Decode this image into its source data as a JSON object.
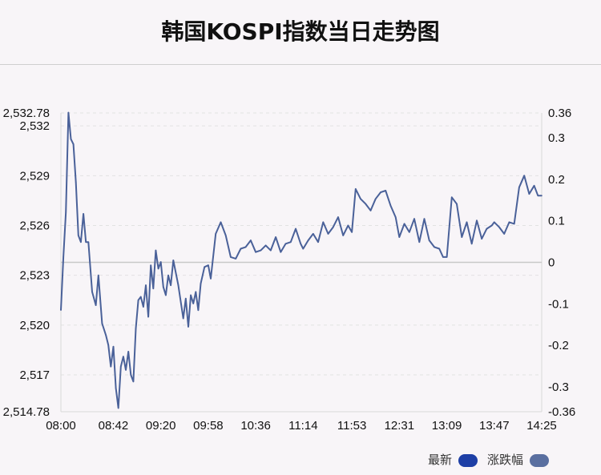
{
  "title": "韩国KOSPI指数当日走势图",
  "legend": [
    {
      "label": "最新",
      "color": "#1e3fa6"
    },
    {
      "label": "涨跌幅",
      "color": "#5a6fa0"
    }
  ],
  "colors": {
    "line": "#4a6199",
    "zero_line": "#c8c8c8",
    "grid": "#e2e2e2"
  },
  "chart_data": {
    "type": "line",
    "x_ticks": [
      "08:00",
      "08:42",
      "09:20",
      "09:58",
      "10:36",
      "11:14",
      "11:53",
      "12:31",
      "13:09",
      "13:47",
      "14:25"
    ],
    "y_left": {
      "min": 2514.78,
      "max": 2532.78,
      "ticks": [
        "2,514.78",
        "2,517",
        "2,520",
        "2,523",
        "2,526",
        "2,529",
        "2,532",
        "2,532.78"
      ],
      "tick_values": [
        2514.78,
        2517,
        2520,
        2523,
        2526,
        2529,
        2532,
        2532.78
      ]
    },
    "y_right": {
      "min": -0.36,
      "max": 0.36,
      "ticks": [
        "-0.36",
        "-0.3",
        "-0.2",
        "-0.1",
        "0",
        "0.1",
        "0.2",
        "0.3",
        "0.36"
      ],
      "tick_values": [
        -0.36,
        -0.3,
        -0.2,
        -0.1,
        0,
        0.1,
        0.2,
        0.3,
        0.36
      ]
    },
    "baseline": 2523.8,
    "series": [
      {
        "x": [
          "08:00",
          "08:02",
          "08:04",
          "08:06",
          "08:08",
          "08:10",
          "08:12",
          "08:14",
          "08:16",
          "08:18",
          "08:20",
          "08:22",
          "08:25",
          "08:28",
          "08:30",
          "08:33",
          "08:36",
          "08:38",
          "08:40",
          "08:42",
          "08:44",
          "08:46",
          "08:48",
          "08:50",
          "08:52",
          "08:54",
          "08:56",
          "08:58",
          "09:00",
          "09:02",
          "09:04",
          "09:06",
          "09:08",
          "09:10",
          "09:12",
          "09:14",
          "09:16",
          "09:18",
          "09:20",
          "09:22",
          "09:24",
          "09:26",
          "09:28",
          "09:30",
          "09:34",
          "09:38",
          "09:40",
          "09:42",
          "09:44",
          "09:46",
          "09:48",
          "09:50",
          "09:52",
          "09:55",
          "09:58",
          "10:00",
          "10:04",
          "10:08",
          "10:12",
          "10:16",
          "10:20",
          "10:24",
          "10:28",
          "10:32",
          "10:36",
          "10:40",
          "10:44",
          "10:48",
          "10:52",
          "10:56",
          "11:00",
          "11:04",
          "11:08",
          "11:12",
          "11:14",
          "11:18",
          "11:22",
          "11:26",
          "11:30",
          "11:34",
          "11:38",
          "11:42",
          "11:46",
          "11:50",
          "11:53",
          "11:56",
          "12:00",
          "12:04",
          "12:08",
          "12:12",
          "12:16",
          "12:20",
          "12:24",
          "12:28",
          "12:31",
          "12:35",
          "12:39",
          "12:43",
          "12:47",
          "12:51",
          "12:55",
          "12:59",
          "13:03",
          "13:06",
          "13:09",
          "13:13",
          "13:17",
          "13:21",
          "13:25",
          "13:29",
          "13:33",
          "13:37",
          "13:41",
          "13:45",
          "13:47",
          "13:51",
          "13:55",
          "13:59",
          "14:03",
          "14:07",
          "14:11",
          "14:15",
          "14:19",
          "14:22",
          "14:25"
        ],
        "values": [
          2520.9,
          2524.1,
          2526.8,
          2532.8,
          2531.2,
          2530.9,
          2528.6,
          2525.4,
          2525.0,
          2526.7,
          2525.0,
          2525.0,
          2522.0,
          2521.2,
          2523.0,
          2520.1,
          2519.4,
          2518.8,
          2517.5,
          2518.7,
          2516.2,
          2515.0,
          2517.5,
          2518.1,
          2517.3,
          2518.4,
          2517.0,
          2516.6,
          2519.8,
          2521.5,
          2521.7,
          2521.1,
          2522.4,
          2520.5,
          2523.6,
          2522.2,
          2524.5,
          2523.4,
          2523.8,
          2522.3,
          2521.8,
          2523.0,
          2522.4,
          2523.9,
          2522.4,
          2520.4,
          2521.6,
          2519.9,
          2521.8,
          2521.3,
          2522.0,
          2520.9,
          2522.5,
          2523.5,
          2523.6,
          2522.8,
          2525.5,
          2526.2,
          2525.4,
          2524.1,
          2524.0,
          2524.6,
          2524.7,
          2525.1,
          2524.4,
          2524.5,
          2524.8,
          2524.5,
          2525.3,
          2524.4,
          2524.9,
          2525.0,
          2525.8,
          2524.9,
          2524.6,
          2525.1,
          2525.5,
          2525.0,
          2526.2,
          2525.5,
          2525.9,
          2526.5,
          2525.4,
          2526.0,
          2525.6,
          2528.2,
          2527.6,
          2527.3,
          2526.9,
          2527.6,
          2528.0,
          2528.1,
          2527.2,
          2526.5,
          2525.3,
          2526.1,
          2525.6,
          2526.4,
          2525.0,
          2526.4,
          2525.1,
          2524.7,
          2524.6,
          2524.1,
          2524.1,
          2527.7,
          2527.3,
          2525.3,
          2526.2,
          2524.9,
          2526.3,
          2525.2,
          2525.8,
          2526.0,
          2526.2,
          2525.9,
          2525.5,
          2526.2,
          2526.1,
          2528.3,
          2529.0,
          2527.9,
          2528.4,
          2527.8,
          2527.8
        ]
      }
    ],
    "grid": true,
    "legend_position": "bottom-right"
  }
}
